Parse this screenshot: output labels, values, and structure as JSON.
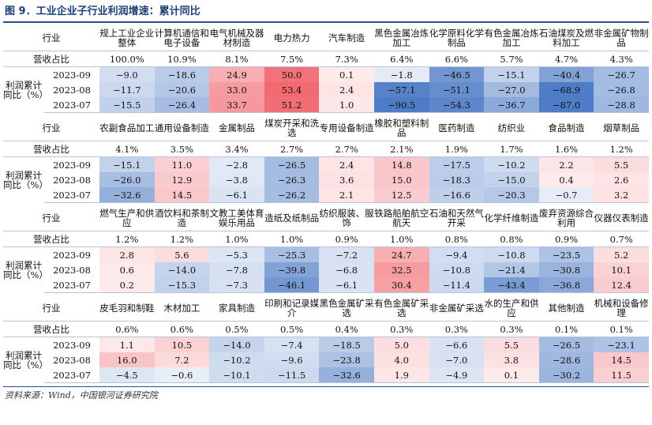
{
  "title": "图 9．工业企业子行业利润增速：累计同比",
  "source": "资料来源：Wind，中国银河证券研究院",
  "labels": {
    "industry": "行业",
    "revenue_share": "营收占比",
    "profit_metric": "利润累计同比（%）",
    "dates": [
      "2023-09",
      "2023-08",
      "2023-07"
    ]
  },
  "colors": {
    "positive": "#f0545c",
    "negative": "#4a78c4",
    "title": "#1c3f78"
  },
  "chart_data": {
    "type": "heatmap",
    "title": "工业企业子行业利润增速：累计同比",
    "rows": [
      "2023-09",
      "2023-08",
      "2023-07"
    ],
    "blocks": [
      {
        "industries": [
          "规上工业企业整体",
          "计算机通信和电子设备",
          "电气机械及器材制造",
          "电力热力",
          "汽车制造",
          "黑色金属冶炼加工",
          "化学原料化学制品",
          "有色金属冶炼加工",
          "石油煤炭及燃料加工",
          "非金属矿物制品"
        ],
        "revenue_share": [
          "100.0%",
          "10.9%",
          "8.1%",
          "7.5%",
          "7.3%",
          "6.4%",
          "6.6%",
          "5.7%",
          "4.7%",
          "4.3%"
        ],
        "values": [
          [
            -9.0,
            -18.6,
            24.9,
            50.0,
            0.1,
            -1.8,
            -46.5,
            -15.1,
            -40.4,
            -26.7
          ],
          [
            -11.7,
            -20.6,
            33.0,
            53.4,
            2.4,
            -57.1,
            -51.1,
            -27.0,
            -68.9,
            -26.8
          ],
          [
            -15.5,
            -26.4,
            33.7,
            51.2,
            1.0,
            -90.5,
            -54.3,
            -36.7,
            -87.0,
            -28.8
          ]
        ]
      },
      {
        "industries": [
          "农副食品加工",
          "通用设备制造",
          "金属制品",
          "煤炭开采和洗选",
          "专用设备制造",
          "橡胶和塑料制品",
          "医药制造",
          "纺织业",
          "食品制造",
          "烟草制品"
        ],
        "revenue_share": [
          "4.1%",
          "3.5%",
          "3.4%",
          "2.7%",
          "2.7%",
          "2.1%",
          "1.9%",
          "1.7%",
          "1.6%",
          "1.2%"
        ],
        "values": [
          [
            -15.1,
            11.0,
            -2.8,
            -26.5,
            2.4,
            14.8,
            -17.5,
            -10.2,
            2.2,
            5.5
          ],
          [
            -26.0,
            12.9,
            -3.8,
            -26.3,
            3.6,
            15.0,
            -18.3,
            -15.0,
            0.4,
            2.6
          ],
          [
            -32.6,
            14.5,
            -6.1,
            -26.2,
            2.1,
            12.5,
            -16.6,
            -20.3,
            -0.7,
            3.2
          ]
        ]
      },
      {
        "industries": [
          "燃气生产和供应",
          "酒饮料和茶制造",
          "文教工美体育娱乐用品",
          "造纸及纸制品",
          "纺织服装、服饰",
          "铁路船舶航空航天",
          "石油和天然气开采",
          "化学纤维制造",
          "废弃资源综合利用",
          "仪器仪表制造"
        ],
        "revenue_share": [
          "1.2%",
          "1.2%",
          "1.0%",
          "1.0%",
          "0.9%",
          "1.0%",
          "0.8%",
          "0.8%",
          "0.9%",
          "0.7%"
        ],
        "values": [
          [
            2.8,
            5.6,
            -5.3,
            -25.3,
            -7.2,
            24.7,
            -9.4,
            -10.8,
            -23.5,
            5.2
          ],
          [
            0.6,
            -14.0,
            -7.8,
            -39.8,
            -6.8,
            32.5,
            -10.8,
            -21.4,
            -30.8,
            10.1
          ],
          [
            0.2,
            -15.3,
            -7.3,
            -46.1,
            -6.1,
            30.4,
            -11.4,
            -43.4,
            -36.8,
            12.4
          ]
        ]
      },
      {
        "industries": [
          "皮毛羽和制鞋",
          "木材加工",
          "家具制造",
          "印刷和记录媒介",
          "黑色金属矿采选",
          "有色金属矿采选",
          "非金属矿采选",
          "水的生产和供应",
          "其他制造",
          "机械和设备修理"
        ],
        "revenue_share": [
          "0.6%",
          "0.6%",
          "0.5%",
          "0.5%",
          "0.4%",
          "0.3%",
          "0.3%",
          "0.3%",
          "0.1%",
          "0.1%"
        ],
        "values": [
          [
            1.1,
            10.5,
            -14.0,
            -7.4,
            -18.5,
            5.0,
            -6.6,
            5.5,
            -26.5,
            -23.1
          ],
          [
            16.0,
            7.2,
            -10.2,
            -9.6,
            -23.8,
            4.0,
            -7.0,
            3.8,
            -28.6,
            14.5
          ],
          [
            -4.5,
            -0.6,
            -10.1,
            -11.5,
            -32.6,
            1.9,
            -4.9,
            0.1,
            -30.2,
            11.5
          ]
        ]
      }
    ]
  }
}
